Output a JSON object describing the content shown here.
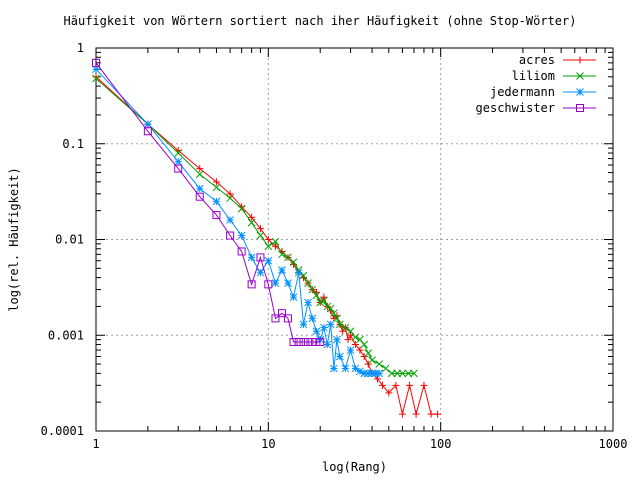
{
  "chart_data": {
    "type": "line",
    "title": "Häufigkeit von Wörtern sortiert nach iher Häufigkeit (ohne Stop-Wörter)",
    "xlabel": "log(Rang)",
    "ylabel": "log(rel. Häufigkeit)",
    "xscale": "log",
    "yscale": "log",
    "xlim": [
      1,
      1000
    ],
    "ylim": [
      0.0001,
      1
    ],
    "grid": true,
    "legend_position": "top-right",
    "xticks": [
      {
        "value": 1,
        "label": "1"
      },
      {
        "value": 10,
        "label": "10"
      },
      {
        "value": 100,
        "label": "100"
      },
      {
        "value": 1000,
        "label": "1000"
      }
    ],
    "yticks": [
      {
        "value": 1,
        "label": "1"
      },
      {
        "value": 0.1,
        "label": "0.1"
      },
      {
        "value": 0.01,
        "label": "0.01"
      },
      {
        "value": 0.001,
        "label": "0.001"
      },
      {
        "value": 0.0001,
        "label": "0.0001"
      }
    ],
    "series": [
      {
        "name": "acres",
        "color": "#ff0000",
        "marker": "plus",
        "x": [
          1,
          2,
          3,
          4,
          5,
          6,
          7,
          8,
          9,
          10,
          11,
          12,
          13,
          14,
          15,
          16,
          17,
          18,
          19,
          20,
          21,
          22,
          23,
          24,
          25,
          26,
          27,
          28,
          29,
          30,
          32,
          34,
          36,
          38,
          40,
          43,
          46,
          50,
          55,
          60,
          66,
          72,
          80,
          88,
          96
        ],
        "y": [
          0.5,
          0.16,
          0.085,
          0.055,
          0.04,
          0.03,
          0.022,
          0.017,
          0.013,
          0.01,
          0.0085,
          0.0075,
          0.0065,
          0.0055,
          0.0045,
          0.004,
          0.0035,
          0.003,
          0.0028,
          0.0022,
          0.0025,
          0.002,
          0.0018,
          0.0015,
          0.0016,
          0.0013,
          0.0011,
          0.0012,
          0.0009,
          0.001,
          0.0008,
          0.0007,
          0.0006,
          0.0005,
          0.0004,
          0.00035,
          0.0003,
          0.00025,
          0.0003,
          0.00015,
          0.0003,
          0.00015,
          0.0003,
          0.00015,
          0.00015
        ]
      },
      {
        "name": "liliom",
        "color": "#00a000",
        "marker": "x",
        "x": [
          1,
          2,
          3,
          4,
          5,
          6,
          7,
          8,
          9,
          10,
          11,
          12,
          13,
          14,
          15,
          16,
          17,
          18,
          19,
          20,
          21,
          22,
          23,
          24,
          25,
          26,
          28,
          30,
          32,
          34,
          36,
          38,
          40,
          44,
          48,
          52,
          56,
          60,
          65,
          70
        ],
        "y": [
          0.48,
          0.16,
          0.08,
          0.048,
          0.035,
          0.027,
          0.021,
          0.015,
          0.011,
          0.0085,
          0.0095,
          0.007,
          0.0065,
          0.0058,
          0.0048,
          0.0042,
          0.0035,
          0.003,
          0.0026,
          0.0022,
          0.0023,
          0.002,
          0.0019,
          0.0017,
          0.0015,
          0.0013,
          0.0012,
          0.0011,
          0.00095,
          0.0009,
          0.0008,
          0.00065,
          0.00055,
          0.0005,
          0.00045,
          0.0004,
          0.0004,
          0.0004,
          0.0004,
          0.0004
        ]
      },
      {
        "name": "jedermann",
        "color": "#0090ff",
        "marker": "star",
        "x": [
          1,
          2,
          3,
          4,
          5,
          6,
          7,
          8,
          9,
          10,
          11,
          12,
          13,
          14,
          15,
          16,
          17,
          18,
          19,
          20,
          21,
          22,
          23,
          24,
          25,
          26,
          28,
          30,
          32,
          34,
          36,
          38,
          40,
          42,
          44
        ],
        "y": [
          0.6,
          0.16,
          0.065,
          0.034,
          0.025,
          0.016,
          0.011,
          0.0065,
          0.0045,
          0.006,
          0.0035,
          0.0048,
          0.0035,
          0.0025,
          0.0045,
          0.0013,
          0.0022,
          0.0015,
          0.0011,
          0.0009,
          0.0012,
          0.0008,
          0.0013,
          0.00045,
          0.0009,
          0.0006,
          0.00045,
          0.0007,
          0.00045,
          0.00042,
          0.0004,
          0.0004,
          0.0004,
          0.0004,
          0.0004
        ]
      },
      {
        "name": "geschwister",
        "color": "#9900cc",
        "marker": "square",
        "x": [
          1,
          2,
          3,
          4,
          5,
          6,
          7,
          8,
          9,
          10,
          11,
          12,
          13,
          14,
          15,
          16,
          17,
          18,
          19,
          20
        ],
        "y": [
          0.7,
          0.135,
          0.055,
          0.028,
          0.018,
          0.011,
          0.0075,
          0.0034,
          0.0065,
          0.0034,
          0.0015,
          0.0017,
          0.0015,
          0.00085,
          0.00085,
          0.00085,
          0.00085,
          0.00085,
          0.00085,
          0.00085
        ]
      }
    ]
  }
}
